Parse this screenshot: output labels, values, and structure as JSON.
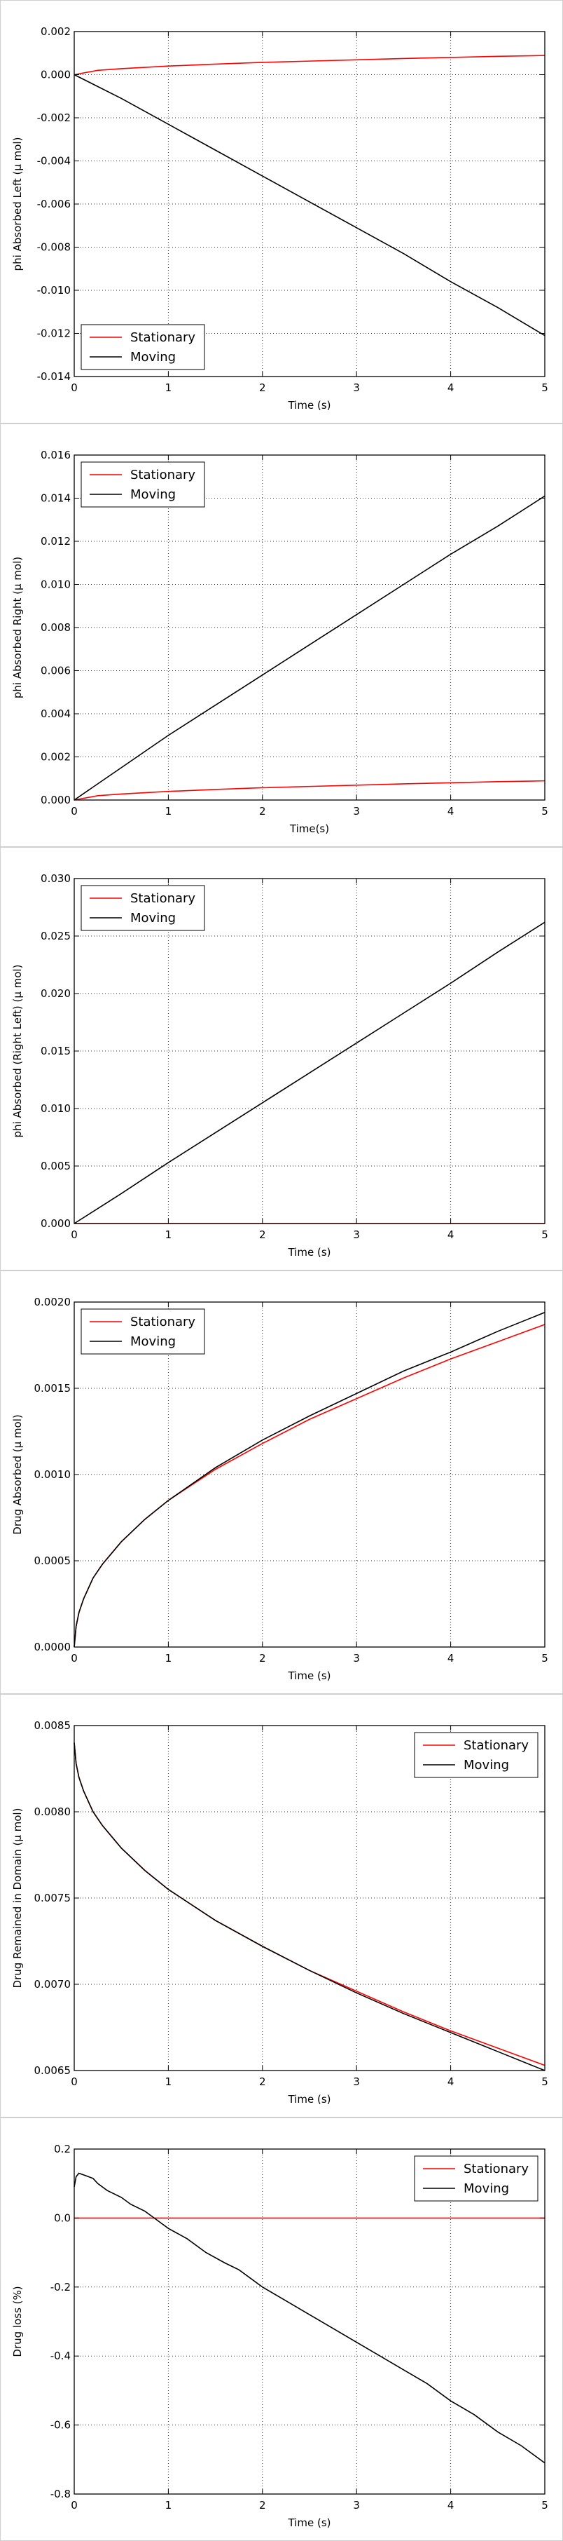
{
  "chart_data": [
    {
      "type": "line",
      "title": "",
      "xlabel": "Time (s)",
      "ylabel": "phi Absorbed Left (μ mol)",
      "xlim": [
        0,
        5
      ],
      "ylim": [
        -0.014,
        0.002
      ],
      "xticks": [
        "0",
        "1",
        "2",
        "3",
        "4",
        "5"
      ],
      "yticks": [
        "0.002",
        "0.000",
        "-0.002",
        "-0.004",
        "-0.006",
        "-0.008",
        "-0.010",
        "-0.012",
        "-0.014"
      ],
      "ytick_values": [
        0.002,
        0,
        -0.002,
        -0.004,
        -0.006,
        -0.008,
        -0.01,
        -0.012,
        -0.014
      ],
      "grid": true,
      "legend": "bottom-left",
      "series": [
        {
          "name": "Stationary",
          "color": "#ff0000",
          "x": [
            0,
            0.25,
            0.5,
            1,
            1.5,
            2,
            2.5,
            3,
            3.5,
            4,
            4.5,
            5
          ],
          "y": [
            0,
            0.0002,
            0.00028,
            0.0004,
            0.00049,
            0.00057,
            0.00063,
            0.00069,
            0.00075,
            0.0008,
            0.00085,
            0.00089
          ]
        },
        {
          "name": "Moving",
          "color": "#000000",
          "x": [
            0,
            0.5,
            1,
            1.5,
            2,
            2.5,
            3,
            3.5,
            4,
            4.5,
            5
          ],
          "y": [
            0,
            -0.0011,
            -0.0023,
            -0.0035,
            -0.0047,
            -0.0059,
            -0.0071,
            -0.0083,
            -0.0096,
            -0.0108,
            -0.0121
          ]
        }
      ]
    },
    {
      "type": "line",
      "title": "",
      "xlabel": "Time(s)",
      "ylabel": "phi Absorbed Right (μ mol)",
      "xlim": [
        0,
        5
      ],
      "ylim": [
        0,
        0.016
      ],
      "xticks": [
        "0",
        "1",
        "2",
        "3",
        "4",
        "5"
      ],
      "yticks": [
        "0.016",
        "0.014",
        "0.012",
        "0.010",
        "0.008",
        "0.006",
        "0.004",
        "0.002",
        "0.000"
      ],
      "ytick_values": [
        0.016,
        0.014,
        0.012,
        0.01,
        0.008,
        0.006,
        0.004,
        0.002,
        0
      ],
      "grid": true,
      "legend": "top-left",
      "series": [
        {
          "name": "Stationary",
          "color": "#ff0000",
          "x": [
            0,
            0.25,
            0.5,
            1,
            1.5,
            2,
            2.5,
            3,
            3.5,
            4,
            4.5,
            5
          ],
          "y": [
            0,
            0.0002,
            0.00028,
            0.0004,
            0.00049,
            0.00057,
            0.00063,
            0.00069,
            0.00075,
            0.0008,
            0.00085,
            0.00089
          ]
        },
        {
          "name": "Moving",
          "color": "#000000",
          "x": [
            0,
            0.5,
            1,
            1.5,
            2,
            2.5,
            3,
            3.5,
            4,
            4.5,
            5
          ],
          "y": [
            0,
            0.0015,
            0.003,
            0.0044,
            0.0058,
            0.0072,
            0.0086,
            0.01,
            0.0114,
            0.0127,
            0.0141
          ]
        }
      ]
    },
    {
      "type": "line",
      "title": "",
      "xlabel": "Time (s)",
      "ylabel": "phi Absorbed (Right Left) (μ mol)",
      "xlim": [
        0,
        5
      ],
      "ylim": [
        0,
        0.03
      ],
      "xticks": [
        "0",
        "1",
        "2",
        "3",
        "4",
        "5"
      ],
      "yticks": [
        "0.030",
        "0.025",
        "0.020",
        "0.015",
        "0.010",
        "0.005",
        "0.000"
      ],
      "ytick_values": [
        0.03,
        0.025,
        0.02,
        0.015,
        0.01,
        0.005,
        0
      ],
      "grid": true,
      "legend": "top-left",
      "series": [
        {
          "name": "Stationary",
          "color": "#ff0000",
          "x": [
            0,
            1,
            2,
            3,
            4,
            5
          ],
          "y": [
            0,
            0,
            0,
            0,
            0,
            0
          ]
        },
        {
          "name": "Moving",
          "color": "#000000",
          "x": [
            0,
            0.5,
            1,
            1.5,
            2,
            2.5,
            3,
            3.5,
            4,
            4.5,
            5
          ],
          "y": [
            0,
            0.0026,
            0.0053,
            0.0079,
            0.0105,
            0.0131,
            0.0157,
            0.0183,
            0.0209,
            0.0236,
            0.0262
          ]
        }
      ]
    },
    {
      "type": "line",
      "title": "",
      "xlabel": "Time (s)",
      "ylabel": "Drug Absorbed (μ mol)",
      "xlim": [
        0,
        5
      ],
      "ylim": [
        0,
        0.002
      ],
      "xticks": [
        "0",
        "1",
        "2",
        "3",
        "4",
        "5"
      ],
      "yticks": [
        "0.0020",
        "0.0015",
        "0.0010",
        "0.0005",
        "0.0000"
      ],
      "ytick_values": [
        0.002,
        0.0015,
        0.001,
        0.0005,
        0
      ],
      "grid": true,
      "legend": "top-left",
      "series": [
        {
          "name": "Stationary",
          "color": "#ff0000",
          "x": [
            0,
            0.02,
            0.05,
            0.1,
            0.2,
            0.3,
            0.5,
            0.75,
            1,
            1.5,
            2,
            2.5,
            3,
            3.5,
            4,
            4.5,
            5
          ],
          "y": [
            0,
            0.00012,
            0.0002,
            0.00028,
            0.0004,
            0.00048,
            0.00061,
            0.00074,
            0.00085,
            0.00103,
            0.00118,
            0.00132,
            0.00144,
            0.00156,
            0.00167,
            0.00177,
            0.00187
          ]
        },
        {
          "name": "Moving",
          "color": "#000000",
          "x": [
            0,
            0.02,
            0.05,
            0.1,
            0.2,
            0.3,
            0.5,
            0.75,
            1,
            1.5,
            2,
            2.5,
            3,
            3.5,
            4,
            4.5,
            5
          ],
          "y": [
            0,
            0.00012,
            0.0002,
            0.00028,
            0.0004,
            0.00048,
            0.00061,
            0.00074,
            0.00085,
            0.00104,
            0.0012,
            0.00134,
            0.00147,
            0.0016,
            0.00171,
            0.00183,
            0.00194
          ]
        }
      ]
    },
    {
      "type": "line",
      "title": "",
      "xlabel": "Time (s)",
      "ylabel": "Drug Remained in Domain (μ mol)",
      "xlim": [
        0,
        5
      ],
      "ylim": [
        0.0065,
        0.0085
      ],
      "xticks": [
        "0",
        "1",
        "2",
        "3",
        "4",
        "5"
      ],
      "yticks": [
        "0.0085",
        "0.0080",
        "0.0075",
        "0.0070",
        "0.0065"
      ],
      "ytick_values": [
        0.0085,
        0.008,
        0.0075,
        0.007,
        0.0065
      ],
      "grid": true,
      "legend": "top-right",
      "series": [
        {
          "name": "Stationary",
          "color": "#ff0000",
          "x": [
            0,
            0.02,
            0.05,
            0.1,
            0.2,
            0.3,
            0.5,
            0.75,
            1,
            1.5,
            2,
            2.5,
            3,
            3.5,
            4,
            4.5,
            5
          ],
          "y": [
            0.0084,
            0.00828,
            0.0082,
            0.00812,
            0.008,
            0.00792,
            0.00779,
            0.00766,
            0.00755,
            0.00737,
            0.00722,
            0.00708,
            0.00696,
            0.00684,
            0.00673,
            0.00663,
            0.00653
          ]
        },
        {
          "name": "Moving",
          "color": "#000000",
          "x": [
            0,
            0.02,
            0.05,
            0.1,
            0.2,
            0.3,
            0.5,
            0.75,
            1,
            1.5,
            2,
            2.5,
            3,
            3.5,
            4,
            4.5,
            5
          ],
          "y": [
            0.0084,
            0.00828,
            0.0082,
            0.00812,
            0.008,
            0.00792,
            0.00779,
            0.00766,
            0.00755,
            0.00737,
            0.00722,
            0.00708,
            0.00695,
            0.00683,
            0.00672,
            0.00661,
            0.0065
          ]
        }
      ]
    },
    {
      "type": "line",
      "title": "",
      "xlabel": "Time (s)",
      "ylabel": "Drug loss (%)",
      "xlim": [
        0,
        5
      ],
      "ylim": [
        -0.8,
        0.2
      ],
      "xticks": [
        "0",
        "1",
        "2",
        "3",
        "4",
        "5"
      ],
      "yticks": [
        "0.2",
        "0.0",
        "-0.2",
        "-0.4",
        "-0.6",
        "-0.8"
      ],
      "ytick_values": [
        0.2,
        0,
        -0.2,
        -0.4,
        -0.6,
        -0.8
      ],
      "grid": true,
      "legend": "top-right",
      "series": [
        {
          "name": "Stationary",
          "color": "#ff0000",
          "x": [
            0,
            1,
            2,
            3,
            4,
            5
          ],
          "y": [
            0,
            0,
            0,
            0,
            0,
            0
          ]
        },
        {
          "name": "Moving",
          "color": "#000000",
          "x": [
            0,
            0.02,
            0.05,
            0.1,
            0.2,
            0.25,
            0.35,
            0.5,
            0.6,
            0.75,
            0.85,
            1,
            1.2,
            1.4,
            1.6,
            1.75,
            2,
            2.25,
            2.5,
            2.75,
            3,
            3.25,
            3.5,
            3.75,
            4,
            4.25,
            4.5,
            4.75,
            5
          ],
          "y": [
            0.09,
            0.12,
            0.13,
            0.125,
            0.115,
            0.1,
            0.08,
            0.06,
            0.04,
            0.02,
            0.0,
            -0.03,
            -0.06,
            -0.1,
            -0.13,
            -0.15,
            -0.2,
            -0.24,
            -0.28,
            -0.32,
            -0.36,
            -0.4,
            -0.44,
            -0.48,
            -0.53,
            -0.57,
            -0.62,
            -0.66,
            -0.71
          ]
        }
      ]
    }
  ]
}
